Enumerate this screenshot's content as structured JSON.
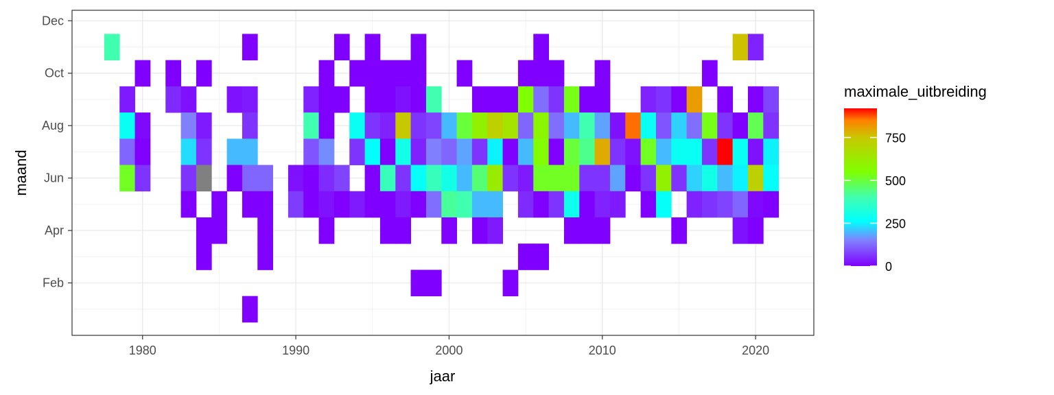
{
  "chart_data": {
    "type": "heatmap",
    "title": "",
    "xlabel": "jaar",
    "ylabel": "maand",
    "xlim": [
      1975.4,
      2023.8
    ],
    "ylim": [
      0.0,
      12.4
    ],
    "xticks": [
      1980,
      1990,
      2000,
      2010,
      2020
    ],
    "yticks": [
      {
        "value": 2,
        "label": "Feb"
      },
      {
        "value": 4,
        "label": "Apr"
      },
      {
        "value": 6,
        "label": "Jun"
      },
      {
        "value": 8,
        "label": "Aug"
      },
      {
        "value": 10,
        "label": "Oct"
      },
      {
        "value": 12,
        "label": "Dec"
      }
    ],
    "grid": true,
    "legend": {
      "title": "maximale_uitbreiding",
      "position": "right",
      "min": 0,
      "max": 920,
      "ticks": [
        0,
        250,
        500,
        750
      ]
    },
    "colorscale": [
      {
        "value": 0,
        "color": "#7f00ff"
      },
      {
        "value": 150,
        "color": "#8080ff"
      },
      {
        "value": 260,
        "color": "#00ffff"
      },
      {
        "value": 400,
        "color": "#40ffb0"
      },
      {
        "value": 550,
        "color": "#7fff00"
      },
      {
        "value": 750,
        "color": "#c8c800"
      },
      {
        "value": 850,
        "color": "#ff8000"
      },
      {
        "value": 920,
        "color": "#ff0000"
      }
    ],
    "na_color": "#808080",
    "cells": [
      {
        "x": 1978,
        "y": 11,
        "v": 400
      },
      {
        "x": 1979,
        "y": 9,
        "v": 30
      },
      {
        "x": 1979,
        "y": 8,
        "v": 280
      },
      {
        "x": 1979,
        "y": 7,
        "v": 120
      },
      {
        "x": 1979,
        "y": 6,
        "v": 520
      },
      {
        "x": 1980,
        "y": 10,
        "v": 0
      },
      {
        "x": 1980,
        "y": 8,
        "v": 10
      },
      {
        "x": 1980,
        "y": 7,
        "v": 0
      },
      {
        "x": 1980,
        "y": 6,
        "v": 60
      },
      {
        "x": 1982,
        "y": 10,
        "v": 0
      },
      {
        "x": 1982,
        "y": 9,
        "v": 50
      },
      {
        "x": 1983,
        "y": 9,
        "v": 20
      },
      {
        "x": 1983,
        "y": 8,
        "v": 150
      },
      {
        "x": 1983,
        "y": 7,
        "v": 230
      },
      {
        "x": 1983,
        "y": 6,
        "v": 60
      },
      {
        "x": 1983,
        "y": 5,
        "v": 0
      },
      {
        "x": 1984,
        "y": 10,
        "v": 0
      },
      {
        "x": 1984,
        "y": 8,
        "v": 30
      },
      {
        "x": 1984,
        "y": 7,
        "v": 60
      },
      {
        "x": 1984,
        "y": 6,
        "v": null
      },
      {
        "x": 1984,
        "y": 4,
        "v": 0
      },
      {
        "x": 1984,
        "y": 3,
        "v": 0
      },
      {
        "x": 1985,
        "y": 5,
        "v": 0
      },
      {
        "x": 1985,
        "y": 4,
        "v": 0
      },
      {
        "x": 1986,
        "y": 9,
        "v": 20
      },
      {
        "x": 1986,
        "y": 7,
        "v": 200
      },
      {
        "x": 1986,
        "y": 6,
        "v": 0
      },
      {
        "x": 1987,
        "y": 11,
        "v": 0
      },
      {
        "x": 1987,
        "y": 9,
        "v": 30
      },
      {
        "x": 1987,
        "y": 8,
        "v": 60
      },
      {
        "x": 1987,
        "y": 7,
        "v": 200
      },
      {
        "x": 1987,
        "y": 6,
        "v": 120
      },
      {
        "x": 1987,
        "y": 5,
        "v": 0
      },
      {
        "x": 1987,
        "y": 1,
        "v": 0
      },
      {
        "x": 1988,
        "y": 6,
        "v": 120
      },
      {
        "x": 1988,
        "y": 5,
        "v": 0
      },
      {
        "x": 1988,
        "y": 4,
        "v": 0
      },
      {
        "x": 1988,
        "y": 3,
        "v": 0
      },
      {
        "x": 1990,
        "y": 6,
        "v": 20
      },
      {
        "x": 1990,
        "y": 5,
        "v": 70
      },
      {
        "x": 1991,
        "y": 9,
        "v": 40
      },
      {
        "x": 1991,
        "y": 8,
        "v": 400
      },
      {
        "x": 1991,
        "y": 7,
        "v": 100
      },
      {
        "x": 1991,
        "y": 6,
        "v": 0
      },
      {
        "x": 1991,
        "y": 5,
        "v": 0
      },
      {
        "x": 1992,
        "y": 10,
        "v": 0
      },
      {
        "x": 1992,
        "y": 9,
        "v": 0
      },
      {
        "x": 1992,
        "y": 8,
        "v": 0
      },
      {
        "x": 1992,
        "y": 7,
        "v": 160
      },
      {
        "x": 1992,
        "y": 6,
        "v": 50
      },
      {
        "x": 1992,
        "y": 5,
        "v": 20
      },
      {
        "x": 1992,
        "y": 4,
        "v": 0
      },
      {
        "x": 1993,
        "y": 11,
        "v": 0
      },
      {
        "x": 1993,
        "y": 9,
        "v": 0
      },
      {
        "x": 1993,
        "y": 6,
        "v": 80
      },
      {
        "x": 1993,
        "y": 5,
        "v": 0
      },
      {
        "x": 1994,
        "y": 10,
        "v": 0
      },
      {
        "x": 1994,
        "y": 8,
        "v": 280
      },
      {
        "x": 1994,
        "y": 7,
        "v": 60
      },
      {
        "x": 1994,
        "y": 5,
        "v": 30
      },
      {
        "x": 1995,
        "y": 11,
        "v": 0
      },
      {
        "x": 1995,
        "y": 10,
        "v": 0
      },
      {
        "x": 1995,
        "y": 9,
        "v": 0
      },
      {
        "x": 1995,
        "y": 8,
        "v": 60
      },
      {
        "x": 1995,
        "y": 7,
        "v": 260
      },
      {
        "x": 1995,
        "y": 6,
        "v": 0
      },
      {
        "x": 1995,
        "y": 5,
        "v": 0
      },
      {
        "x": 1996,
        "y": 10,
        "v": 0
      },
      {
        "x": 1996,
        "y": 9,
        "v": 0
      },
      {
        "x": 1996,
        "y": 8,
        "v": 40
      },
      {
        "x": 1996,
        "y": 7,
        "v": 0
      },
      {
        "x": 1996,
        "y": 6,
        "v": 380
      },
      {
        "x": 1996,
        "y": 5,
        "v": 0
      },
      {
        "x": 1996,
        "y": 4,
        "v": 0
      },
      {
        "x": 1997,
        "y": 10,
        "v": 0
      },
      {
        "x": 1997,
        "y": 9,
        "v": 20
      },
      {
        "x": 1997,
        "y": 8,
        "v": 750
      },
      {
        "x": 1997,
        "y": 7,
        "v": 300
      },
      {
        "x": 1997,
        "y": 6,
        "v": 60
      },
      {
        "x": 1997,
        "y": 5,
        "v": 30
      },
      {
        "x": 1997,
        "y": 4,
        "v": 0
      },
      {
        "x": 1998,
        "y": 11,
        "v": 0
      },
      {
        "x": 1998,
        "y": 10,
        "v": 0
      },
      {
        "x": 1998,
        "y": 9,
        "v": 0
      },
      {
        "x": 1998,
        "y": 8,
        "v": 60
      },
      {
        "x": 1998,
        "y": 7,
        "v": 40
      },
      {
        "x": 1998,
        "y": 6,
        "v": 270
      },
      {
        "x": 1998,
        "y": 5,
        "v": 0
      },
      {
        "x": 1998,
        "y": 2,
        "v": 0
      },
      {
        "x": 1999,
        "y": 9,
        "v": 400
      },
      {
        "x": 1999,
        "y": 8,
        "v": 80
      },
      {
        "x": 1999,
        "y": 7,
        "v": 150
      },
      {
        "x": 1999,
        "y": 6,
        "v": 380
      },
      {
        "x": 1999,
        "y": 5,
        "v": 130
      },
      {
        "x": 1999,
        "y": 2,
        "v": 0
      },
      {
        "x": 2000,
        "y": 8,
        "v": 200
      },
      {
        "x": 2000,
        "y": 7,
        "v": 120
      },
      {
        "x": 2000,
        "y": 6,
        "v": 300
      },
      {
        "x": 2000,
        "y": 5,
        "v": 420
      },
      {
        "x": 2000,
        "y": 4,
        "v": 0
      },
      {
        "x": 2001,
        "y": 10,
        "v": 0
      },
      {
        "x": 2001,
        "y": 8,
        "v": 500
      },
      {
        "x": 2001,
        "y": 7,
        "v": 180
      },
      {
        "x": 2001,
        "y": 6,
        "v": 200
      },
      {
        "x": 2001,
        "y": 5,
        "v": 400
      },
      {
        "x": 2002,
        "y": 9,
        "v": 0
      },
      {
        "x": 2002,
        "y": 8,
        "v": 600
      },
      {
        "x": 2002,
        "y": 7,
        "v": 60
      },
      {
        "x": 2002,
        "y": 6,
        "v": 450
      },
      {
        "x": 2002,
        "y": 5,
        "v": 200
      },
      {
        "x": 2002,
        "y": 4,
        "v": 0
      },
      {
        "x": 2003,
        "y": 9,
        "v": 0
      },
      {
        "x": 2003,
        "y": 8,
        "v": 720
      },
      {
        "x": 2003,
        "y": 7,
        "v": 250
      },
      {
        "x": 2003,
        "y": 6,
        "v": 620
      },
      {
        "x": 2003,
        "y": 5,
        "v": 200
      },
      {
        "x": 2003,
        "y": 4,
        "v": 30
      },
      {
        "x": 2004,
        "y": 9,
        "v": 0
      },
      {
        "x": 2004,
        "y": 8,
        "v": 650
      },
      {
        "x": 2004,
        "y": 7,
        "v": 0
      },
      {
        "x": 2004,
        "y": 6,
        "v": 60
      },
      {
        "x": 2004,
        "y": 2,
        "v": 0
      },
      {
        "x": 2005,
        "y": 10,
        "v": 0
      },
      {
        "x": 2005,
        "y": 9,
        "v": 550
      },
      {
        "x": 2005,
        "y": 8,
        "v": 120
      },
      {
        "x": 2005,
        "y": 7,
        "v": 200
      },
      {
        "x": 2005,
        "y": 6,
        "v": 30
      },
      {
        "x": 2005,
        "y": 5,
        "v": 50
      },
      {
        "x": 2005,
        "y": 3,
        "v": 0
      },
      {
        "x": 2006,
        "y": 11,
        "v": 0
      },
      {
        "x": 2006,
        "y": 10,
        "v": 0
      },
      {
        "x": 2006,
        "y": 9,
        "v": 130
      },
      {
        "x": 2006,
        "y": 8,
        "v": 580
      },
      {
        "x": 2006,
        "y": 7,
        "v": 560
      },
      {
        "x": 2006,
        "y": 6,
        "v": 520
      },
      {
        "x": 2006,
        "y": 5,
        "v": 0
      },
      {
        "x": 2006,
        "y": 3,
        "v": 0
      },
      {
        "x": 2007,
        "y": 10,
        "v": 0
      },
      {
        "x": 2007,
        "y": 9,
        "v": 60
      },
      {
        "x": 2007,
        "y": 8,
        "v": 130
      },
      {
        "x": 2007,
        "y": 7,
        "v": 0
      },
      {
        "x": 2007,
        "y": 6,
        "v": 520
      },
      {
        "x": 2007,
        "y": 5,
        "v": 60
      },
      {
        "x": 2008,
        "y": 9,
        "v": 530
      },
      {
        "x": 2008,
        "y": 8,
        "v": 200
      },
      {
        "x": 2008,
        "y": 7,
        "v": 500
      },
      {
        "x": 2008,
        "y": 6,
        "v": 520
      },
      {
        "x": 2008,
        "y": 5,
        "v": 290
      },
      {
        "x": 2008,
        "y": 4,
        "v": 0
      },
      {
        "x": 2009,
        "y": 9,
        "v": 0
      },
      {
        "x": 2009,
        "y": 8,
        "v": 400
      },
      {
        "x": 2009,
        "y": 7,
        "v": 430
      },
      {
        "x": 2009,
        "y": 6,
        "v": 60
      },
      {
        "x": 2009,
        "y": 5,
        "v": 0
      },
      {
        "x": 2009,
        "y": 4,
        "v": 0
      },
      {
        "x": 2010,
        "y": 10,
        "v": 0
      },
      {
        "x": 2010,
        "y": 9,
        "v": 0
      },
      {
        "x": 2010,
        "y": 8,
        "v": 180
      },
      {
        "x": 2010,
        "y": 7,
        "v": 790
      },
      {
        "x": 2010,
        "y": 6,
        "v": 60
      },
      {
        "x": 2010,
        "y": 5,
        "v": 40
      },
      {
        "x": 2010,
        "y": 4,
        "v": 0
      },
      {
        "x": 2011,
        "y": 8,
        "v": 20
      },
      {
        "x": 2011,
        "y": 7,
        "v": 60
      },
      {
        "x": 2011,
        "y": 6,
        "v": 180
      },
      {
        "x": 2011,
        "y": 5,
        "v": 30
      },
      {
        "x": 2012,
        "y": 8,
        "v": 860
      },
      {
        "x": 2012,
        "y": 7,
        "v": 20
      },
      {
        "x": 2012,
        "y": 6,
        "v": 0
      },
      {
        "x": 2013,
        "y": 9,
        "v": 40
      },
      {
        "x": 2013,
        "y": 8,
        "v": 280
      },
      {
        "x": 2013,
        "y": 7,
        "v": 520
      },
      {
        "x": 2013,
        "y": 6,
        "v": 60
      },
      {
        "x": 2013,
        "y": 5,
        "v": 0
      },
      {
        "x": 2014,
        "y": 9,
        "v": 60
      },
      {
        "x": 2014,
        "y": 8,
        "v": 100
      },
      {
        "x": 2014,
        "y": 7,
        "v": 200
      },
      {
        "x": 2014,
        "y": 6,
        "v": 600
      },
      {
        "x": 2014,
        "y": 5,
        "v": 270
      },
      {
        "x": 2015,
        "y": 9,
        "v": 0
      },
      {
        "x": 2015,
        "y": 8,
        "v": 220
      },
      {
        "x": 2015,
        "y": 7,
        "v": 280
      },
      {
        "x": 2015,
        "y": 6,
        "v": 60
      },
      {
        "x": 2015,
        "y": 4,
        "v": 0
      },
      {
        "x": 2016,
        "y": 9,
        "v": 810
      },
      {
        "x": 2016,
        "y": 8,
        "v": 130
      },
      {
        "x": 2016,
        "y": 7,
        "v": 280
      },
      {
        "x": 2016,
        "y": 6,
        "v": 220
      },
      {
        "x": 2016,
        "y": 5,
        "v": 40
      },
      {
        "x": 2017,
        "y": 10,
        "v": 0
      },
      {
        "x": 2017,
        "y": 8,
        "v": 530
      },
      {
        "x": 2017,
        "y": 7,
        "v": 60
      },
      {
        "x": 2017,
        "y": 6,
        "v": 300
      },
      {
        "x": 2017,
        "y": 5,
        "v": 60
      },
      {
        "x": 2018,
        "y": 9,
        "v": 0
      },
      {
        "x": 2018,
        "y": 8,
        "v": 60
      },
      {
        "x": 2018,
        "y": 7,
        "v": 920
      },
      {
        "x": 2018,
        "y": 6,
        "v": 200
      },
      {
        "x": 2018,
        "y": 5,
        "v": 80
      },
      {
        "x": 2019,
        "y": 11,
        "v": 760
      },
      {
        "x": 2019,
        "y": 8,
        "v": 0
      },
      {
        "x": 2019,
        "y": 7,
        "v": 280
      },
      {
        "x": 2019,
        "y": 6,
        "v": 250
      },
      {
        "x": 2019,
        "y": 5,
        "v": 120
      },
      {
        "x": 2019,
        "y": 4,
        "v": 20
      },
      {
        "x": 2020,
        "y": 11,
        "v": 40
      },
      {
        "x": 2020,
        "y": 9,
        "v": 0
      },
      {
        "x": 2020,
        "y": 8,
        "v": 480
      },
      {
        "x": 2020,
        "y": 7,
        "v": 20
      },
      {
        "x": 2020,
        "y": 6,
        "v": 720
      },
      {
        "x": 2020,
        "y": 5,
        "v": 10
      },
      {
        "x": 2020,
        "y": 4,
        "v": 0
      },
      {
        "x": 2021,
        "y": 9,
        "v": 80
      },
      {
        "x": 2021,
        "y": 8,
        "v": 60
      },
      {
        "x": 2021,
        "y": 7,
        "v": 250
      },
      {
        "x": 2021,
        "y": 6,
        "v": 270
      },
      {
        "x": 2021,
        "y": 5,
        "v": 0
      }
    ]
  }
}
